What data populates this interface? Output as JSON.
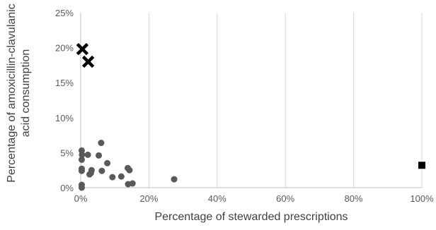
{
  "chart_data": {
    "type": "scatter",
    "title": "",
    "xlabel": "Percentage of stewarded prescriptions",
    "ylabel_lines": [
      "Percentage of amoxicillin-clavulanic",
      "acid consumption"
    ],
    "xlim": [
      0,
      100
    ],
    "ylim": [
      0,
      25
    ],
    "x_ticks": [
      0,
      20,
      40,
      60,
      80,
      100
    ],
    "y_ticks": [
      0,
      5,
      10,
      15,
      20,
      25
    ],
    "x_tick_labels": [
      "0%",
      "20%",
      "40%",
      "60%",
      "80%",
      "100%"
    ],
    "y_tick_labels": [
      "0%",
      "5%",
      "10%",
      "15%",
      "20%",
      "25%"
    ],
    "grid": "vertical",
    "legend": "none",
    "colors": {
      "circles": "#595959",
      "crosses": "#000000",
      "squares": "#000000",
      "grid": "#d9d9d9",
      "axis": "#bfbfbf"
    },
    "series": [
      {
        "marker": "circle",
        "points": [
          [
            0.3,
            5.3
          ],
          [
            0.4,
            4.7
          ],
          [
            0.3,
            4.0
          ],
          [
            0.3,
            2.7
          ],
          [
            0.3,
            2.4
          ],
          [
            0.3,
            0.4
          ],
          [
            0.3,
            0.0
          ],
          [
            2.1,
            4.7
          ],
          [
            3.2,
            2.5
          ],
          [
            3.0,
            2.1
          ],
          [
            2.6,
            1.9
          ],
          [
            5.3,
            4.6
          ],
          [
            6.0,
            6.4
          ],
          [
            6.2,
            2.4
          ],
          [
            7.8,
            3.5
          ],
          [
            9.3,
            1.5
          ],
          [
            11.9,
            1.6
          ],
          [
            13.8,
            2.8
          ],
          [
            14.3,
            2.5
          ],
          [
            13.9,
            0.5
          ],
          [
            15.2,
            0.6
          ],
          [
            27.4,
            1.2
          ]
        ]
      },
      {
        "marker": "cross",
        "points": [
          [
            0.5,
            19.8
          ],
          [
            2.2,
            18.0
          ]
        ]
      },
      {
        "marker": "square",
        "points": [
          [
            100,
            3.2
          ]
        ]
      }
    ]
  }
}
